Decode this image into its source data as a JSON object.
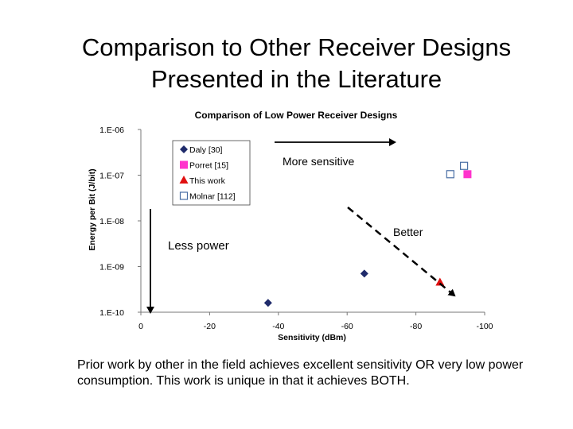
{
  "slide": {
    "title_line1": "Comparison to Other Receiver Designs",
    "title_line2": "Presented in the Literature",
    "caption": "Prior work by other in the field achieves excellent sensitivity OR very low power consumption.  This work is unique in that it achieves BOTH."
  },
  "chart_data": {
    "type": "scatter",
    "title": "Comparison of Low Power Receiver Designs",
    "xlabel": "Sensitivity (dBm)",
    "ylabel": "Energy per Bit (J/bit)",
    "xlim": [
      0,
      -100
    ],
    "ylim_log10": [
      -10,
      -6
    ],
    "y_scale": "log",
    "x_ticks": [
      0,
      -20,
      -40,
      -60,
      -80,
      -100
    ],
    "x_tick_labels": [
      "0",
      "-20",
      "-40",
      "-60",
      "-80",
      "-100"
    ],
    "y_ticks_log10": [
      -6,
      -7,
      -8,
      -9,
      -10
    ],
    "y_tick_labels": [
      "1.E-06",
      "1.E-07",
      "1.E-08",
      "1.E-09",
      "1.E-10"
    ],
    "grid": false,
    "legend_position": "top-left",
    "series": [
      {
        "name": "Daly [30]",
        "marker": "diamond",
        "color": "#1f2b6b",
        "points": [
          {
            "x": -37,
            "y": 1.6e-10
          },
          {
            "x": -65,
            "y": 7e-10
          }
        ]
      },
      {
        "name": "Porret [15]",
        "marker": "square",
        "color": "#ff33cc",
        "points": [
          {
            "x": -95,
            "y": 1.05e-07
          }
        ]
      },
      {
        "name": "This work",
        "marker": "triangle",
        "color": "#e01010",
        "points": [
          {
            "x": -87,
            "y": 4.5e-10
          }
        ]
      },
      {
        "name": "Molnar [112]",
        "marker": "hollow-square",
        "color": "#4a6fa5",
        "points": [
          {
            "x": -90,
            "y": 1.05e-07
          },
          {
            "x": -94,
            "y": 1.6e-07
          }
        ]
      }
    ],
    "annotations": {
      "more_sensitive": "More sensitive",
      "better": "Better",
      "less_power": "Less power"
    }
  }
}
